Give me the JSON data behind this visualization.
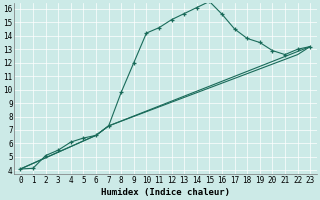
{
  "xlabel": "Humidex (Indice chaleur)",
  "bg_color": "#cceae7",
  "line_color": "#1a6b5a",
  "grid_color": "#b0d8d4",
  "xlim": [
    -0.5,
    23.5
  ],
  "ylim": [
    3.7,
    16.4
  ],
  "xticks": [
    0,
    1,
    2,
    3,
    4,
    5,
    6,
    7,
    8,
    9,
    10,
    11,
    12,
    13,
    14,
    15,
    16,
    17,
    18,
    19,
    20,
    21,
    22,
    23
  ],
  "yticks": [
    4,
    5,
    6,
    7,
    8,
    9,
    10,
    11,
    12,
    13,
    14,
    15,
    16
  ],
  "line1_x": [
    0,
    1,
    2,
    3,
    4,
    5,
    6,
    7,
    8,
    9,
    10,
    11,
    12,
    13,
    14,
    15,
    16,
    17,
    18,
    19,
    20,
    21,
    22,
    23
  ],
  "line1_y": [
    4.1,
    4.15,
    5.1,
    5.5,
    6.1,
    6.4,
    6.6,
    7.3,
    9.8,
    12.0,
    14.2,
    14.6,
    15.2,
    15.65,
    16.1,
    16.55,
    15.6,
    14.5,
    13.8,
    13.5,
    12.9,
    12.6,
    13.0,
    13.2
  ],
  "line2_x": [
    0,
    6,
    7,
    23
  ],
  "line2_y": [
    4.1,
    6.6,
    7.3,
    13.2
  ],
  "line3_x": [
    0,
    6,
    7,
    22,
    23
  ],
  "line3_y": [
    4.1,
    6.6,
    7.3,
    12.6,
    13.2
  ],
  "xlabel_fontsize": 6.5,
  "tick_fontsize": 5.5
}
